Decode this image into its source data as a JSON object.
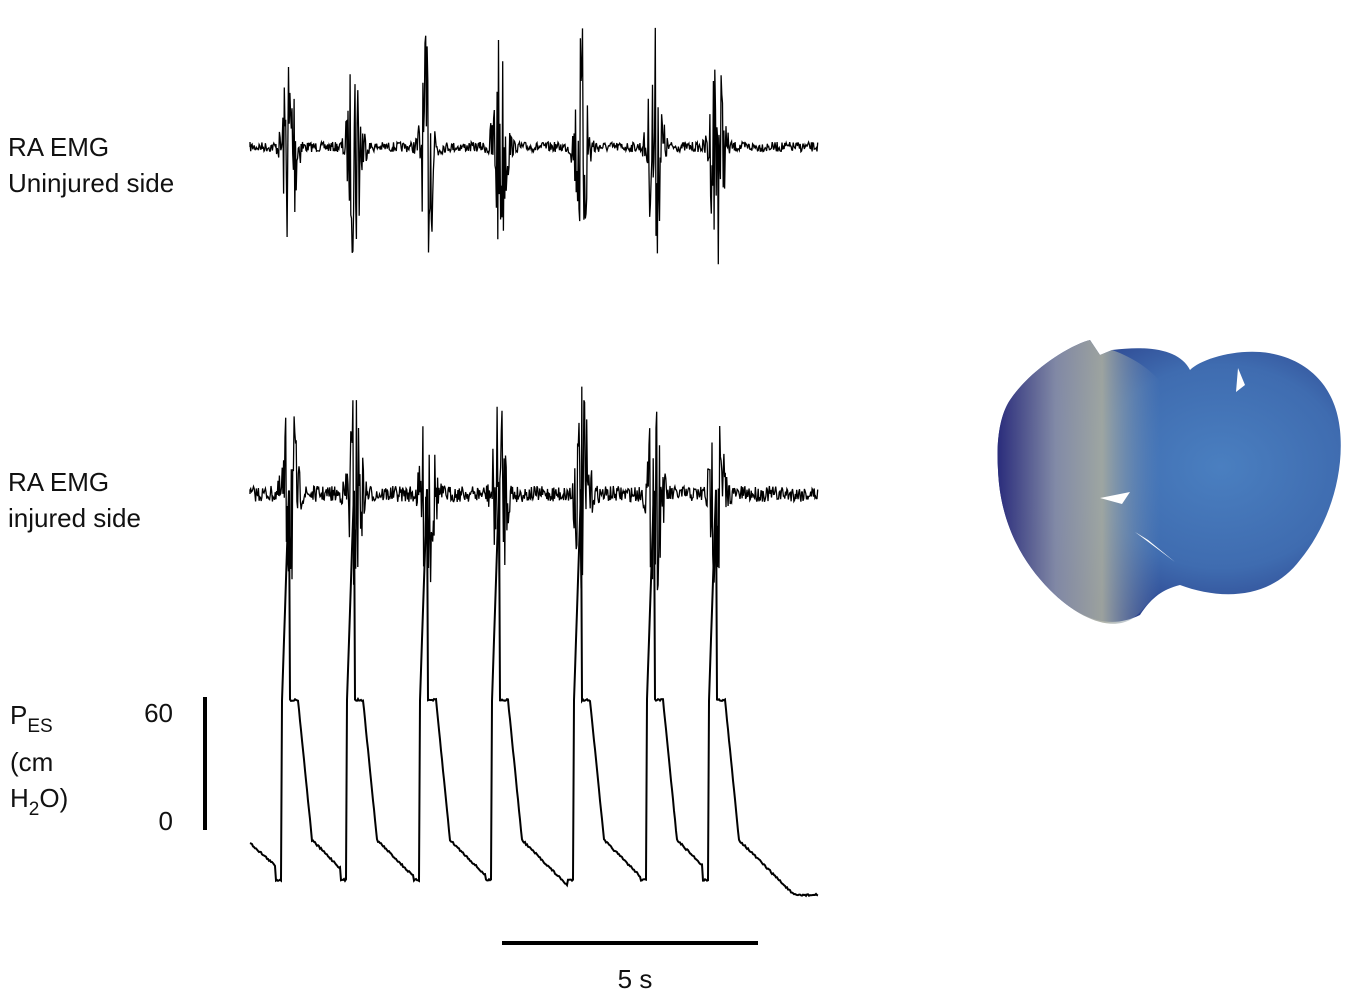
{
  "panels": [
    {
      "lines": [
        "RA EMG",
        "Uninjured side"
      ]
    },
    {
      "lines": [
        "RA EMG",
        "injured side"
      ]
    }
  ],
  "pressure": {
    "symbol": "P",
    "symbol_sub": "ES",
    "unit_line1": "(cm",
    "unit_h": "H",
    "unit_sub": "2",
    "unit_end": "O)",
    "scale_top": 60,
    "scale_bottom": 0
  },
  "time_scale": "5 s"
}
